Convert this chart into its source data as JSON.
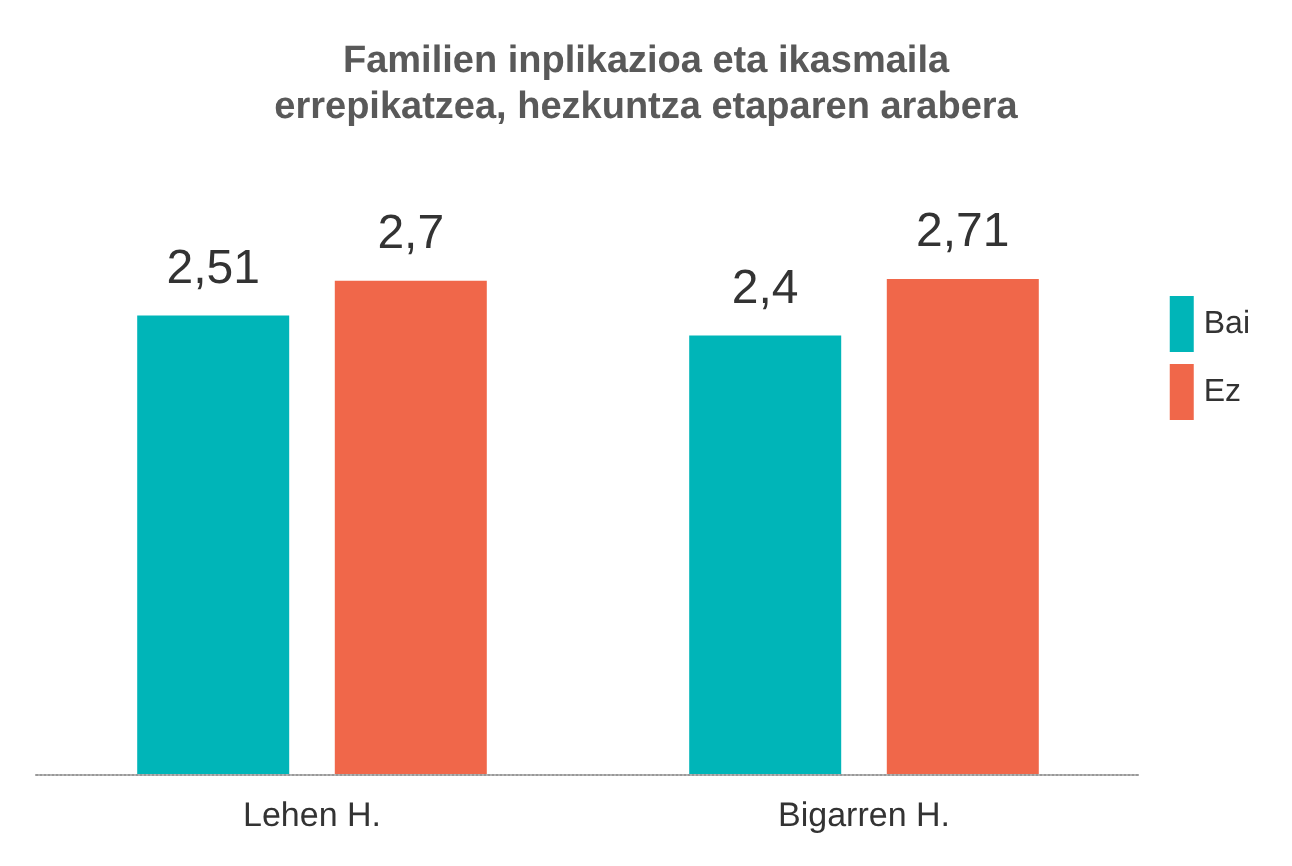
{
  "chart_data": {
    "type": "bar",
    "title": "Familien inplikazioa eta ikasmaila\nerrepikatzea, hezkuntza etaparen arabera",
    "categories": [
      "Lehen H.",
      "Bigarren H."
    ],
    "series": [
      {
        "name": "Bai",
        "color": "#00b5b8",
        "values": [
          2.51,
          2.4
        ],
        "value_labels": [
          "2,51",
          "2,4"
        ]
      },
      {
        "name": "Ez",
        "color": "#f0674a",
        "values": [
          2.7,
          2.71
        ],
        "value_labels": [
          "2,7",
          "2,71"
        ]
      }
    ],
    "tick_labels": "x",
    "grid": false,
    "legend": "right"
  }
}
